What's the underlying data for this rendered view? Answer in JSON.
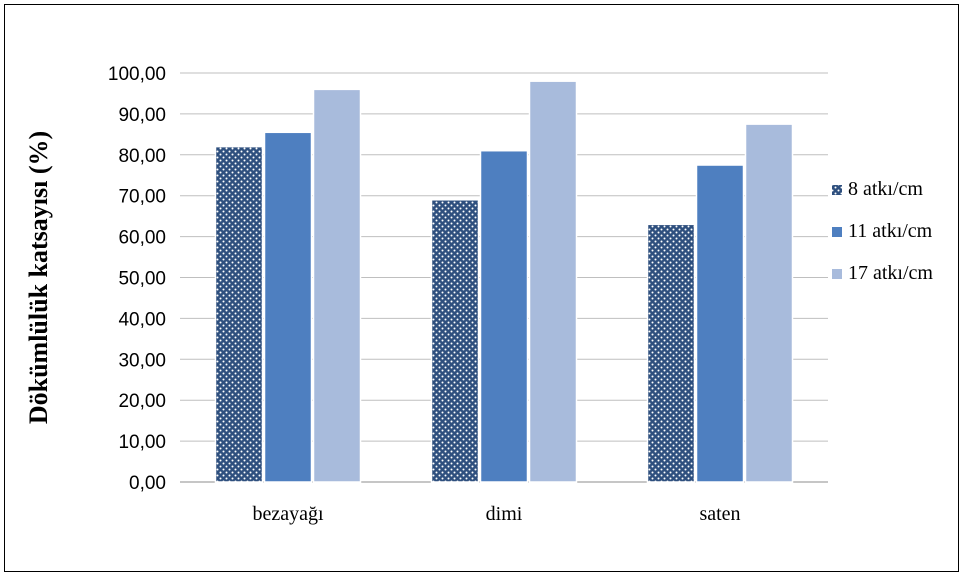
{
  "chart_data": {
    "type": "bar",
    "title": "",
    "xlabel": "",
    "ylabel": "Dökümlülük katsayısı (%)",
    "categories": [
      "bezayağı",
      "dimi",
      "saten"
    ],
    "series": [
      {
        "name": "8 atkı/cm",
        "values": [
          82,
          69,
          63
        ],
        "color": "#2e4f7e",
        "pattern": "dotted"
      },
      {
        "name": "11 atkı/cm",
        "values": [
          85.5,
          81,
          77.5
        ],
        "color": "#4e7fc0"
      },
      {
        "name": "17 atkı/cm",
        "values": [
          96,
          98,
          87.5
        ],
        "color": "#a8bbdc"
      }
    ],
    "ylim": [
      0,
      100
    ],
    "yticks": [
      "0,00",
      "10,00",
      "20,00",
      "30,00",
      "40,00",
      "50,00",
      "60,00",
      "70,00",
      "80,00",
      "90,00",
      "100,00"
    ],
    "grid": true,
    "legend_position": "right"
  }
}
